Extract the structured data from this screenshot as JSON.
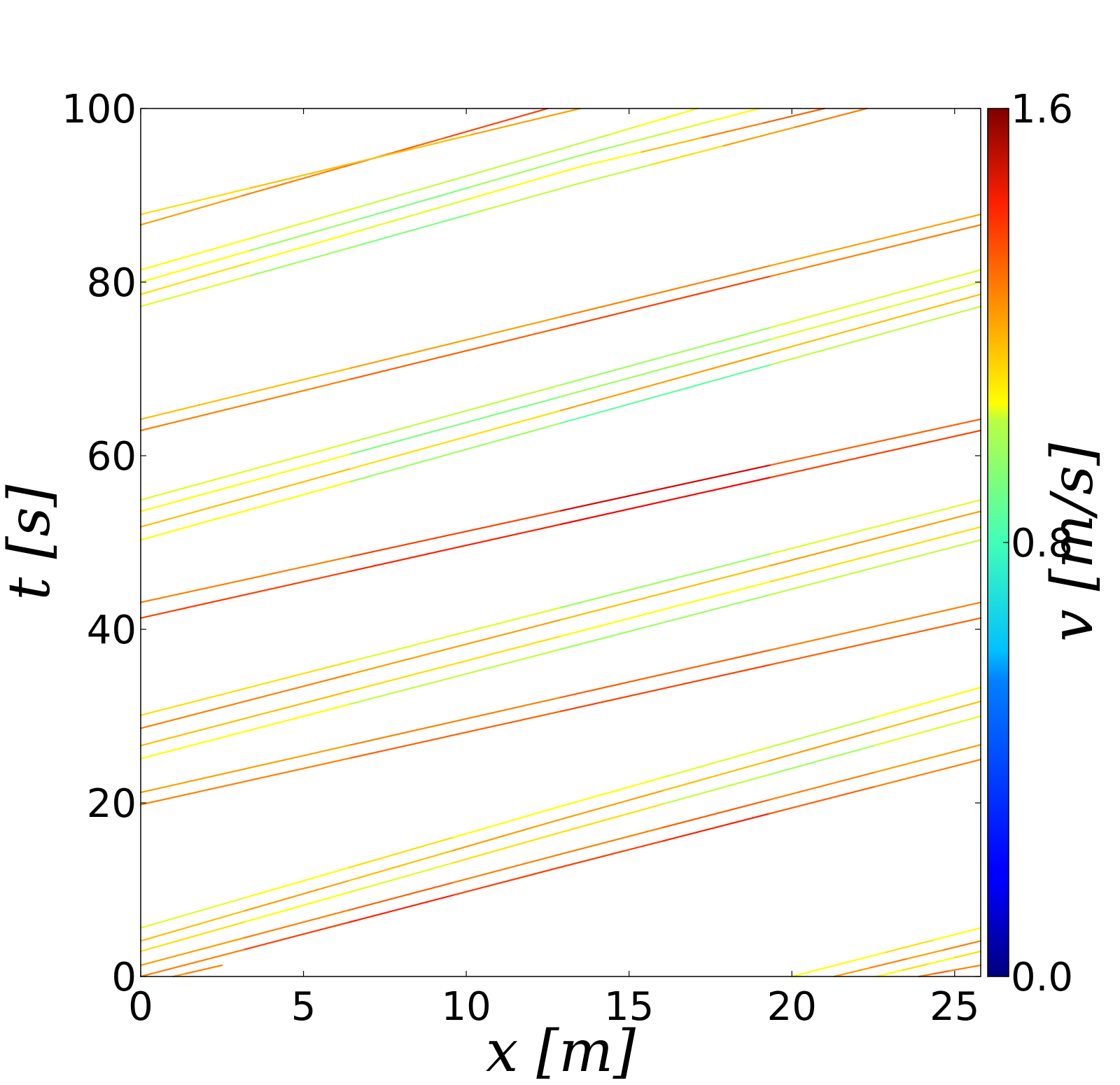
{
  "chart_data": {
    "type": "line",
    "xlabel": "x [m]",
    "ylabel": "t [s]",
    "xlim": [
      0,
      25.8
    ],
    "ylim": [
      0,
      100
    ],
    "xticks": [
      0,
      5,
      10,
      15,
      20,
      25
    ],
    "xtick_labels": [
      "0",
      "5",
      "10",
      "15",
      "20",
      "25"
    ],
    "yticks": [
      0,
      20,
      40,
      60,
      80,
      100
    ],
    "ytick_labels": [
      "0",
      "20",
      "40",
      "60",
      "80",
      "100"
    ],
    "colorbar": {
      "label": "v [m/s]",
      "range": [
        0.0,
        1.6
      ],
      "ticks": [
        0.0,
        0.8,
        1.6
      ],
      "tick_labels": [
        "0.0",
        "0.8",
        "1.6"
      ],
      "colormap": "jet"
    },
    "grid": false,
    "series": [
      {
        "x": [
          0,
          12.8
        ],
        "y": [
          0.0,
          12.5
        ],
        "v": [
          1.2,
          1.3,
          1.35,
          1.3
        ]
      },
      {
        "x": [
          0,
          12.8
        ],
        "y": [
          1.3,
          14.0
        ],
        "v": [
          1.15,
          1.2,
          1.25,
          1.2
        ]
      },
      {
        "x": [
          0,
          12.8
        ],
        "y": [
          2.9,
          16.5
        ],
        "v": [
          1.05,
          1.0,
          0.95,
          1.05
        ]
      },
      {
        "x": [
          0,
          12.8
        ],
        "y": [
          4.1,
          18.0
        ],
        "v": [
          1.1,
          1.15,
          1.1,
          1.15
        ]
      },
      {
        "x": [
          0,
          12.8
        ],
        "y": [
          5.6,
          19.5
        ],
        "v": [
          0.95,
          1.0,
          1.05,
          1.0
        ]
      },
      {
        "x": [
          12.8,
          25.8
        ],
        "y": [
          12.5,
          25.0
        ],
        "v": [
          1.3,
          1.35,
          1.25,
          1.2
        ]
      },
      {
        "x": [
          12.8,
          25.8
        ],
        "y": [
          14.0,
          26.7
        ],
        "v": [
          1.2,
          1.25,
          1.2,
          1.15
        ]
      },
      {
        "x": [
          12.8,
          25.8
        ],
        "y": [
          16.5,
          30.0
        ],
        "v": [
          1.05,
          0.9,
          0.85,
          0.95
        ]
      },
      {
        "x": [
          12.8,
          25.8
        ],
        "y": [
          18.0,
          31.7
        ],
        "v": [
          1.15,
          1.1,
          1.15,
          1.1
        ]
      },
      {
        "x": [
          12.8,
          25.8
        ],
        "y": [
          19.5,
          33.3
        ],
        "v": [
          1.0,
          0.95,
          0.9,
          1.0
        ]
      },
      {
        "x": [
          0,
          25.8
        ],
        "y": [
          19.8,
          41.3
        ],
        "v": [
          1.2,
          1.25,
          1.3,
          1.25
        ]
      },
      {
        "x": [
          0,
          25.8
        ],
        "y": [
          21.2,
          43.1
        ],
        "v": [
          1.15,
          1.2,
          1.25,
          1.2
        ]
      },
      {
        "x": [
          0,
          25.8
        ],
        "y": [
          25.1,
          50.3
        ],
        "v": [
          1.0,
          0.9,
          0.85,
          0.9
        ]
      },
      {
        "x": [
          0,
          25.8
        ],
        "y": [
          26.6,
          51.8
        ],
        "v": [
          1.1,
          1.05,
          1.0,
          1.05
        ]
      },
      {
        "x": [
          0,
          25.8
        ],
        "y": [
          28.6,
          53.6
        ],
        "v": [
          1.2,
          1.15,
          1.1,
          1.15
        ]
      },
      {
        "x": [
          0,
          25.8
        ],
        "y": [
          30.1,
          54.9
        ],
        "v": [
          1.05,
          0.95,
          0.85,
          0.95
        ]
      },
      {
        "x": [
          0,
          25.8
        ],
        "y": [
          41.3,
          62.9
        ],
        "v": [
          1.3,
          1.35,
          1.4,
          1.3
        ]
      },
      {
        "x": [
          0,
          25.8
        ],
        "y": [
          43.1,
          64.2
        ],
        "v": [
          1.2,
          1.3,
          1.45,
          1.25
        ]
      },
      {
        "x": [
          0,
          25.8
        ],
        "y": [
          50.3,
          77.2
        ],
        "v": [
          1.0,
          0.85,
          0.75,
          0.9
        ]
      },
      {
        "x": [
          0,
          25.8
        ],
        "y": [
          51.8,
          78.6
        ],
        "v": [
          1.1,
          1.05,
          1.15,
          1.1
        ]
      },
      {
        "x": [
          0,
          25.8
        ],
        "y": [
          53.6,
          80.0
        ],
        "v": [
          1.0,
          0.8,
          0.85,
          0.95
        ]
      },
      {
        "x": [
          0,
          25.8
        ],
        "y": [
          54.9,
          81.4
        ],
        "v": [
          0.95,
          0.9,
          0.85,
          0.95
        ]
      },
      {
        "x": [
          0,
          25.8
        ],
        "y": [
          62.9,
          86.6
        ],
        "v": [
          1.2,
          1.25,
          1.3,
          1.2
        ]
      },
      {
        "x": [
          0,
          25.8
        ],
        "y": [
          64.2,
          87.8
        ],
        "v": [
          1.1,
          1.15,
          1.2,
          1.15
        ]
      },
      {
        "x": [
          0,
          13.5
        ],
        "y": [
          77.2,
          91.4
        ],
        "v": [
          0.95,
          0.85,
          0.8,
          0.9
        ]
      },
      {
        "x": [
          0,
          13.5
        ],
        "y": [
          78.6,
          93.3
        ],
        "v": [
          1.05,
          1.0,
          0.95,
          1.0
        ]
      },
      {
        "x": [
          0,
          13.5
        ],
        "y": [
          80.0,
          94.6
        ],
        "v": [
          1.0,
          0.85,
          0.8,
          0.85
        ]
      },
      {
        "x": [
          0,
          13.5
        ],
        "y": [
          81.4,
          96.0
        ],
        "v": [
          1.0,
          0.95,
          0.9,
          0.9
        ]
      },
      {
        "x": [
          13.5,
          22.3
        ],
        "y": [
          91.4,
          100
        ],
        "v": [
          0.9,
          1.05,
          1.15,
          1.2
        ]
      },
      {
        "x": [
          13.5,
          21.0
        ],
        "y": [
          93.3,
          100
        ],
        "v": [
          1.0,
          1.1,
          1.2,
          1.25
        ]
      },
      {
        "x": [
          13.5,
          19.0
        ],
        "y": [
          94.6,
          100
        ],
        "v": [
          0.85,
          0.9,
          0.95,
          1.0
        ]
      },
      {
        "x": [
          13.5,
          17.1
        ],
        "y": [
          96.0,
          100
        ],
        "v": [
          0.9,
          0.95,
          1.0,
          1.0
        ]
      },
      {
        "x": [
          0,
          12.5
        ],
        "y": [
          86.6,
          100
        ],
        "v": [
          1.15,
          1.2,
          1.25,
          1.3
        ]
      },
      {
        "x": [
          0,
          13.5
        ],
        "y": [
          87.8,
          100
        ],
        "v": [
          1.05,
          1.1,
          1.1,
          1.15
        ]
      },
      {
        "x": [
          20.0,
          25.8
        ],
        "y": [
          0,
          5.6
        ],
        "v": [
          1.0,
          1.0,
          1.05,
          1.0
        ]
      },
      {
        "x": [
          21.3,
          25.8
        ],
        "y": [
          0,
          4.1
        ],
        "v": [
          1.15,
          1.2,
          1.15,
          1.2
        ]
      },
      {
        "x": [
          22.6,
          25.8
        ],
        "y": [
          0,
          2.9
        ],
        "v": [
          1.0,
          1.05,
          1.0,
          1.05
        ]
      },
      {
        "x": [
          23.9,
          25.8
        ],
        "y": [
          0,
          1.3
        ],
        "v": [
          1.2,
          1.25,
          1.2,
          1.2
        ]
      },
      {
        "x": [
          1.0,
          2.5
        ],
        "y": [
          0,
          1.3
        ],
        "v": [
          1.15,
          1.2,
          1.2,
          1.2
        ]
      }
    ]
  }
}
